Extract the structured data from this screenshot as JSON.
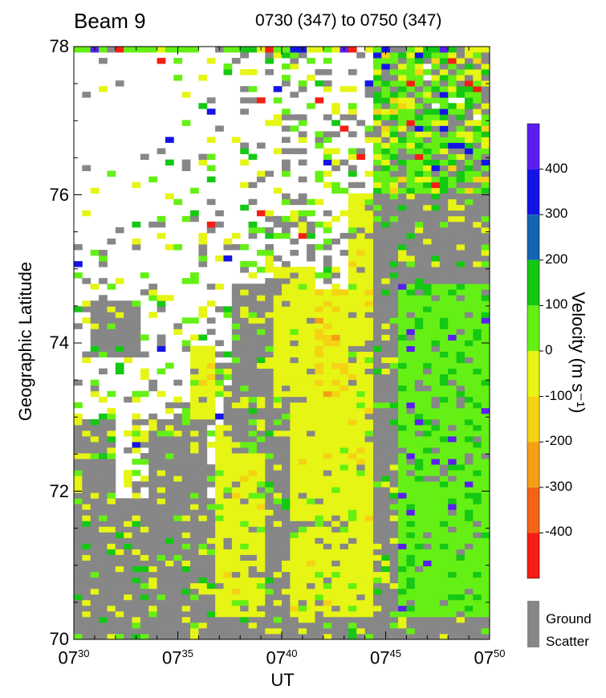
{
  "chart_data": {
    "type": "heatmap",
    "title": "Beam 9",
    "subtitle": "0730 (347) to 0750 (347)",
    "xlabel": "UT",
    "ylabel": "Geographic Latitude",
    "x_ticks": [
      {
        "hour": "07",
        "minute": "30"
      },
      {
        "hour": "07",
        "minute": "35"
      },
      {
        "hour": "07",
        "minute": "40"
      },
      {
        "hour": "07",
        "minute": "45"
      },
      {
        "hour": "07",
        "minute": "50"
      }
    ],
    "xlim_minutes": [
      0,
      20
    ],
    "y_ticks": [
      "70",
      "72",
      "74",
      "76",
      "78"
    ],
    "ylim": [
      70,
      78
    ],
    "colorbar": {
      "label": "Velocity (m s⁻¹)",
      "range": [
        -500,
        500
      ],
      "tick_values": [
        400,
        300,
        200,
        100,
        0,
        -100,
        -200,
        -300,
        -400
      ],
      "tick_labels": [
        "400",
        "300",
        "200",
        "100",
        "0",
        "-100",
        "-200",
        "-300",
        "-400"
      ],
      "bins": [
        {
          "min": 400,
          "max": 500,
          "color": "#5a1ef0"
        },
        {
          "min": 300,
          "max": 400,
          "color": "#1414e6"
        },
        {
          "min": 200,
          "max": 300,
          "color": "#1464b4"
        },
        {
          "min": 100,
          "max": 200,
          "color": "#14c814"
        },
        {
          "min": 0,
          "max": 100,
          "color": "#64f014"
        },
        {
          "min": -100,
          "max": 0,
          "color": "#e6f514"
        },
        {
          "min": -200,
          "max": -100,
          "color": "#f5d214"
        },
        {
          "min": -300,
          "max": -200,
          "color": "#f5a014"
        },
        {
          "min": -400,
          "max": -300,
          "color": "#f56414"
        },
        {
          "min": -500,
          "max": -400,
          "color": "#f51e14"
        }
      ]
    },
    "ground_scatter": {
      "label_line1": "Ground",
      "label_line2": "Scatter",
      "color": "#878787"
    },
    "regions": [
      {
        "t0": 0,
        "t1": 20,
        "lat0": 70,
        "lat1": 70.3,
        "class": "gs"
      },
      {
        "t0": 0,
        "t1": 20,
        "lat0": 70.3,
        "lat1": 71.9,
        "class": "gs"
      },
      {
        "t0": 0,
        "t1": 2.2,
        "lat0": 71.9,
        "lat1": 73.0,
        "class": "gs"
      },
      {
        "t0": 1.0,
        "t1": 3.2,
        "lat0": 73.8,
        "lat1": 74.6,
        "class": "gs"
      },
      {
        "t0": 3.5,
        "t1": 6.5,
        "lat0": 71.9,
        "lat1": 73.0,
        "class": "gs"
      },
      {
        "t0": 5.5,
        "t1": 7.0,
        "lat0": 73.0,
        "lat1": 74.0,
        "class": "yellow"
      },
      {
        "t0": 7.0,
        "t1": 8.3,
        "lat0": 70.3,
        "lat1": 72.9,
        "class": "yellow"
      },
      {
        "t0": 7.5,
        "t1": 9.2,
        "lat0": 72.5,
        "lat1": 74.8,
        "class": "gs"
      },
      {
        "t0": 8.3,
        "t1": 9.2,
        "lat0": 70.3,
        "lat1": 72.5,
        "class": "yellow"
      },
      {
        "t0": 9.2,
        "t1": 10.6,
        "lat0": 70.3,
        "lat1": 74.8,
        "class": "gs"
      },
      {
        "t0": 9.5,
        "t1": 11.0,
        "lat0": 73.3,
        "lat1": 75.0,
        "class": "yellow"
      },
      {
        "t0": 10.6,
        "t1": 11.8,
        "lat0": 70.3,
        "lat1": 75.0,
        "class": "yellow"
      },
      {
        "t0": 11.5,
        "t1": 13.4,
        "lat0": 73.3,
        "lat1": 74.7,
        "class": "orange-yellow"
      },
      {
        "t0": 11.8,
        "t1": 13.8,
        "lat0": 70.3,
        "lat1": 73.3,
        "class": "yellow"
      },
      {
        "t0": 13.4,
        "t1": 14.4,
        "lat0": 70.3,
        "lat1": 76.0,
        "class": "yellow"
      },
      {
        "t0": 14.4,
        "t1": 15.6,
        "lat0": 70.3,
        "lat1": 77.0,
        "class": "gs"
      },
      {
        "t0": 15.6,
        "t1": 20,
        "lat0": 70.3,
        "lat1": 74.8,
        "class": "green"
      },
      {
        "t0": 15.6,
        "t1": 20,
        "lat0": 74.8,
        "lat1": 76.5,
        "class": "gs"
      },
      {
        "t0": 14.5,
        "t1": 20,
        "lat0": 76.0,
        "lat1": 78.0,
        "class": "green-mixed"
      }
    ]
  }
}
